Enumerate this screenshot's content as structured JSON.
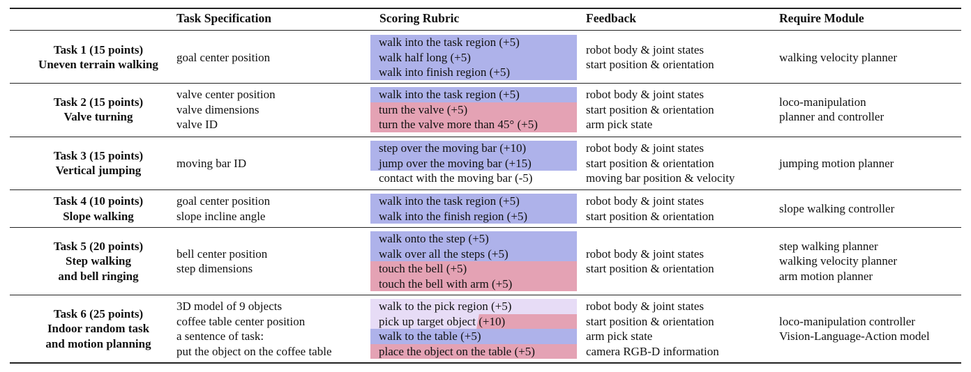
{
  "headers": {
    "col2": "Task Specification",
    "col3": "Scoring Rubric",
    "col4": "Feedback",
    "col5": "Require Module"
  },
  "tasks": [
    {
      "title": "Task 1 (15 points)",
      "name": [
        "Uneven terrain walking"
      ],
      "spec": [
        "goal center position"
      ],
      "rubric": [
        {
          "text": "walk into the task region (+5)",
          "color": "blue"
        },
        {
          "text": "walk half long (+5)",
          "color": "blue"
        },
        {
          "text": "walk into finish region (+5)",
          "color": "blue"
        }
      ],
      "feedback": [
        "robot body & joint states",
        "start position & orientation"
      ],
      "module": [
        "walking velocity planner"
      ]
    },
    {
      "title": "Task 2 (15 points)",
      "name": [
        "Valve turning"
      ],
      "spec": [
        "valve center position",
        "valve dimensions",
        "valve ID"
      ],
      "rubric": [
        {
          "text": "walk into the task region (+5)",
          "color": "blue"
        },
        {
          "text": "turn the valve (+5)",
          "color": "pink"
        },
        {
          "text": "turn the valve more than 45° (+5)",
          "color": "pink"
        }
      ],
      "feedback": [
        "robot body & joint states",
        "start position & orientation",
        "arm pick state"
      ],
      "module": [
        "loco-manipulation",
        "planner and controller"
      ]
    },
    {
      "title": "Task 3 (15 points)",
      "name": [
        "Vertical jumping"
      ],
      "spec": [
        "moving bar ID"
      ],
      "rubric": [
        {
          "text": "step over the moving bar (+10)",
          "color": "blue"
        },
        {
          "text": "jump over the moving bar (+15)",
          "color": "blue"
        },
        {
          "text": "contact with the moving bar (-5)",
          "color": "white"
        }
      ],
      "feedback": [
        "robot body & joint states",
        "start position & orientation",
        "moving bar position & velocity"
      ],
      "module": [
        "jumping motion planner"
      ]
    },
    {
      "title": "Task 4 (10 points)",
      "name": [
        "Slope walking"
      ],
      "spec": [
        "goal center position",
        "slope incline angle"
      ],
      "rubric": [
        {
          "text": "walk into the task region (+5)",
          "color": "blue"
        },
        {
          "text": "walk into the finish region (+5)",
          "color": "blue"
        }
      ],
      "feedback": [
        "robot body & joint states",
        "start position & orientation"
      ],
      "module": [
        "slope walking controller"
      ]
    },
    {
      "title": "Task 5 (20 points)",
      "name": [
        "Step walking",
        "and bell ringing"
      ],
      "spec": [
        "bell center position",
        "step dimensions"
      ],
      "rubric": [
        {
          "text": "walk onto the step (+5)",
          "color": "blue"
        },
        {
          "text": "walk over all the steps (+5)",
          "color": "blue"
        },
        {
          "text": "touch the bell (+5)",
          "color": "pink"
        },
        {
          "text": "touch the bell with arm (+5)",
          "color": "pink"
        }
      ],
      "feedback": [
        "robot body & joint states",
        "start position & orientation"
      ],
      "module": [
        "step walking planner",
        "walking velocity planner",
        "arm motion planner"
      ]
    },
    {
      "title": "Task 6 (25 points)",
      "name": [
        "Indoor random task",
        "and motion planning"
      ],
      "spec": [
        "3D model of 9 objects",
        "coffee table center position",
        "a sentence of task:",
        "put the object on the coffee table"
      ],
      "rubric": [
        {
          "text": "walk to the pick region (+5)",
          "color": "lavender"
        },
        {
          "text": "pick up target object (+10)",
          "color": "split"
        },
        {
          "text": "walk to the table (+5)",
          "color": "blue"
        },
        {
          "text": "place the object on the table (+5)",
          "color": "pink"
        }
      ],
      "feedback": [
        "robot body & joint states",
        "start position & orientation",
        "arm pick state",
        "camera RGB-D information"
      ],
      "module": [
        "loco-manipulation controller",
        "Vision-Language-Action model"
      ]
    }
  ]
}
